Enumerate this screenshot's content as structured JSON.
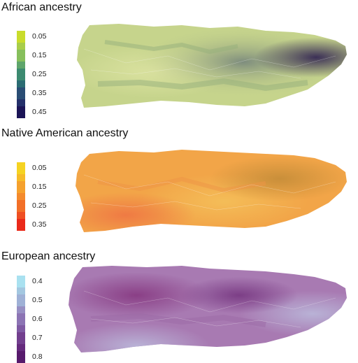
{
  "panels": [
    {
      "title": "African ancestry",
      "legend": [
        {
          "label": "0.05",
          "color": "#c9dc2b"
        },
        {
          "label": "",
          "color": "#a8cd4a"
        },
        {
          "label": "0.15",
          "color": "#86bf5c"
        },
        {
          "label": "",
          "color": "#5ea56b"
        },
        {
          "label": "0.25",
          "color": "#3c8a70"
        },
        {
          "label": "",
          "color": "#2b6c73"
        },
        {
          "label": "0.35",
          "color": "#2a4d74"
        },
        {
          "label": "",
          "color": "#24306a"
        },
        {
          "label": "0.45",
          "color": "#1b1456"
        }
      ],
      "map_colors": {
        "base": "#c6d48c",
        "light": "#dbe2a0",
        "mid": "#a9c082",
        "dark": "#4d5c74",
        "darkest": "#3b2f56",
        "blend": "#95b07c"
      }
    },
    {
      "title": "Native American ancestry",
      "legend": [
        {
          "label": "0.05",
          "color": "#f5d322"
        },
        {
          "label": "",
          "color": "#f6bb28"
        },
        {
          "label": "0.15",
          "color": "#f5a12d"
        },
        {
          "label": "",
          "color": "#f48a2c"
        },
        {
          "label": "0.25",
          "color": "#f26f28"
        },
        {
          "label": "",
          "color": "#ef4f22"
        },
        {
          "label": "0.35",
          "color": "#ea2a1a"
        }
      ],
      "map_colors": {
        "base": "#f2a548",
        "light": "#f4bd58",
        "mid": "#ee9446",
        "dark": "#c98f3a",
        "darkest": "#ef7a44",
        "blend": "#f0ae4d"
      }
    },
    {
      "title": "European ancestry",
      "legend": [
        {
          "label": "0.4",
          "color": "#a9e1f0"
        },
        {
          "label": "",
          "color": "#a3c7e0"
        },
        {
          "label": "0.5",
          "color": "#9fb1d6"
        },
        {
          "label": "",
          "color": "#978fc3"
        },
        {
          "label": "0.6",
          "color": "#8c74b4"
        },
        {
          "label": "",
          "color": "#7f5aa3"
        },
        {
          "label": "0.7",
          "color": "#723f8e"
        },
        {
          "label": "",
          "color": "#652a7d"
        },
        {
          "label": "0.8",
          "color": "#571a6c"
        }
      ],
      "map_colors": {
        "base": "#a87ab2",
        "light": "#b9b2d6",
        "mid": "#9b6aa6",
        "dark": "#7c3e86",
        "darkest": "#8a3f86",
        "blend": "#b89ac4"
      }
    }
  ]
}
